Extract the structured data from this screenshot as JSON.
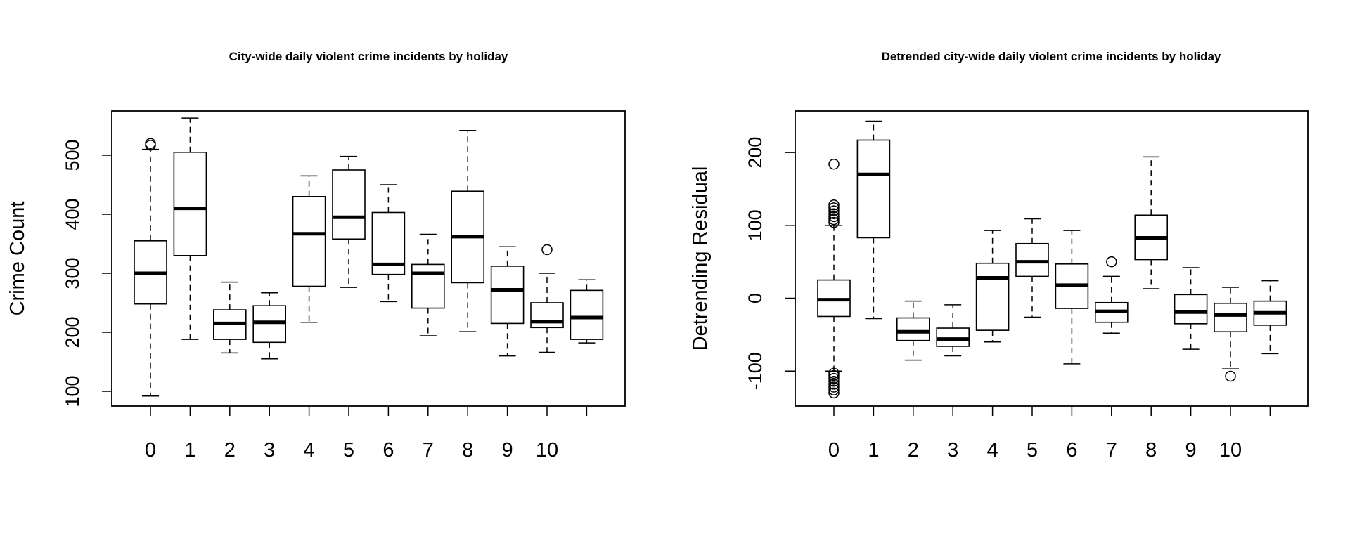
{
  "chart_data": [
    {
      "type": "box",
      "title": "City-wide daily violent crime incidents by holiday",
      "xlabel": "",
      "ylabel": "Crime Count",
      "ylim": [
        75,
        575
      ],
      "yticks": [
        100,
        200,
        300,
        400,
        500
      ],
      "categories": [
        "0",
        "1",
        "2",
        "3",
        "4",
        "5",
        "6",
        "7",
        "8",
        "9",
        "10",
        ""
      ],
      "boxes": [
        {
          "whisker_low": 92,
          "q1": 248,
          "median": 300,
          "q3": 355,
          "whisker_high": 510,
          "outliers": [
            517,
            520
          ]
        },
        {
          "whisker_low": 188,
          "q1": 330,
          "median": 410,
          "q3": 505,
          "whisker_high": 563,
          "outliers": []
        },
        {
          "whisker_low": 165,
          "q1": 188,
          "median": 215,
          "q3": 238,
          "whisker_high": 285,
          "outliers": []
        },
        {
          "whisker_low": 155,
          "q1": 183,
          "median": 217,
          "q3": 245,
          "whisker_high": 267,
          "outliers": []
        },
        {
          "whisker_low": 217,
          "q1": 278,
          "median": 367,
          "q3": 430,
          "whisker_high": 465,
          "outliers": []
        },
        {
          "whisker_low": 276,
          "q1": 358,
          "median": 395,
          "q3": 475,
          "whisker_high": 498,
          "outliers": []
        },
        {
          "whisker_low": 252,
          "q1": 298,
          "median": 315,
          "q3": 403,
          "whisker_high": 450,
          "outliers": []
        },
        {
          "whisker_low": 194,
          "q1": 241,
          "median": 300,
          "q3": 315,
          "whisker_high": 366,
          "outliers": []
        },
        {
          "whisker_low": 201,
          "q1": 284,
          "median": 362,
          "q3": 439,
          "whisker_high": 542,
          "outliers": []
        },
        {
          "whisker_low": 160,
          "q1": 215,
          "median": 272,
          "q3": 312,
          "whisker_high": 345,
          "outliers": []
        },
        {
          "whisker_low": 166,
          "q1": 208,
          "median": 218,
          "q3": 250,
          "whisker_high": 300,
          "outliers": [
            340
          ]
        },
        {
          "whisker_low": 182,
          "q1": 188,
          "median": 225,
          "q3": 271,
          "whisker_high": 289,
          "outliers": []
        }
      ],
      "grid": false,
      "legend": "none"
    },
    {
      "type": "box",
      "title": "Detrended city-wide daily violent crime incidents by holiday",
      "xlabel": "",
      "ylabel": "Detrending Residual",
      "ylim": [
        -148,
        257
      ],
      "yticks": [
        -100,
        0,
        100,
        200
      ],
      "categories": [
        "0",
        "1",
        "2",
        "3",
        "4",
        "5",
        "6",
        "7",
        "8",
        "9",
        "10",
        ""
      ],
      "boxes": [
        {
          "whisker_low": -100,
          "q1": -25,
          "median": -2,
          "q3": 25,
          "whisker_high": 100,
          "outliers": [
            -103,
            -106,
            -110,
            -114,
            -118,
            -122,
            -126,
            -130,
            104,
            108,
            112,
            116,
            120,
            124,
            128,
            184
          ]
        },
        {
          "whisker_low": -28,
          "q1": 83,
          "median": 170,
          "q3": 217,
          "whisker_high": 243,
          "outliers": []
        },
        {
          "whisker_low": -85,
          "q1": -58,
          "median": -46,
          "q3": -27,
          "whisker_high": -4,
          "outliers": []
        },
        {
          "whisker_low": -79,
          "q1": -66,
          "median": -56,
          "q3": -41,
          "whisker_high": -9,
          "outliers": []
        },
        {
          "whisker_low": -60,
          "q1": -44,
          "median": 28,
          "q3": 48,
          "whisker_high": 93,
          "outliers": []
        },
        {
          "whisker_low": -26,
          "q1": 30,
          "median": 50,
          "q3": 75,
          "whisker_high": 109,
          "outliers": []
        },
        {
          "whisker_low": -90,
          "q1": -14,
          "median": 18,
          "q3": 47,
          "whisker_high": 93,
          "outliers": []
        },
        {
          "whisker_low": -48,
          "q1": -33,
          "median": -18,
          "q3": -6,
          "whisker_high": 30,
          "outliers": [
            50
          ]
        },
        {
          "whisker_low": 13,
          "q1": 53,
          "median": 83,
          "q3": 114,
          "whisker_high": 194,
          "outliers": []
        },
        {
          "whisker_low": -70,
          "q1": -35,
          "median": -19,
          "q3": 5,
          "whisker_high": 42,
          "outliers": []
        },
        {
          "whisker_low": -97,
          "q1": -46,
          "median": -23,
          "q3": -7,
          "whisker_high": 15,
          "outliers": [
            -107
          ]
        },
        {
          "whisker_low": -76,
          "q1": -37,
          "median": -20,
          "q3": -4,
          "whisker_high": 24,
          "outliers": []
        }
      ],
      "grid": false,
      "legend": "none"
    }
  ]
}
